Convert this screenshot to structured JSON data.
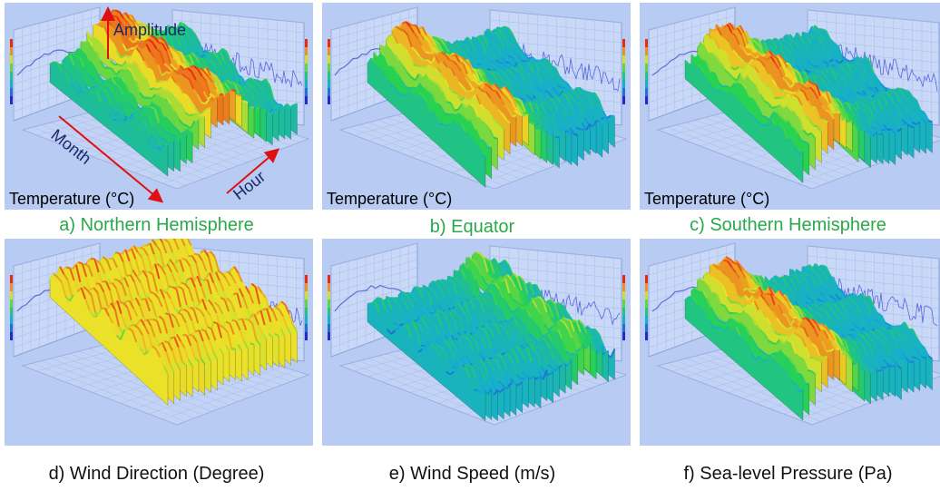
{
  "figure": {
    "annotations": {
      "amplitude": "Amplitude",
      "month": "Month",
      "hour": "Hour"
    },
    "colors": {
      "panel_bg": "#b7cbf3",
      "caption_top": "#2aa84a",
      "caption_bottom": "#111111",
      "arrow": "#e01010"
    }
  },
  "chart_data": [
    {
      "type": "area",
      "caption": "a) Northern Hemisphere",
      "ylabel": "Temperature (°C)",
      "peak": "center",
      "icon": "temperature-surface"
    },
    {
      "type": "area",
      "caption": "b) Equator",
      "ylabel": "Temperature (°C)",
      "peak": "left",
      "icon": "temperature-surface"
    },
    {
      "type": "area",
      "caption": "c) Southern Hemisphere",
      "ylabel": "Temperature (°C)",
      "peak": "left",
      "icon": "temperature-surface"
    },
    {
      "type": "area",
      "caption": "d) Wind Direction (Degree)",
      "ylabel": "",
      "peak": "flat-high",
      "icon": "wind-direction-surface"
    },
    {
      "type": "area",
      "caption": "e) Wind Speed (m/s)",
      "ylabel": "",
      "peak": "right",
      "icon": "wind-speed-surface"
    },
    {
      "type": "area",
      "caption": "f) Sea-level Pressure (Pa)",
      "ylabel": "",
      "peak": "left",
      "icon": "pressure-surface"
    }
  ]
}
